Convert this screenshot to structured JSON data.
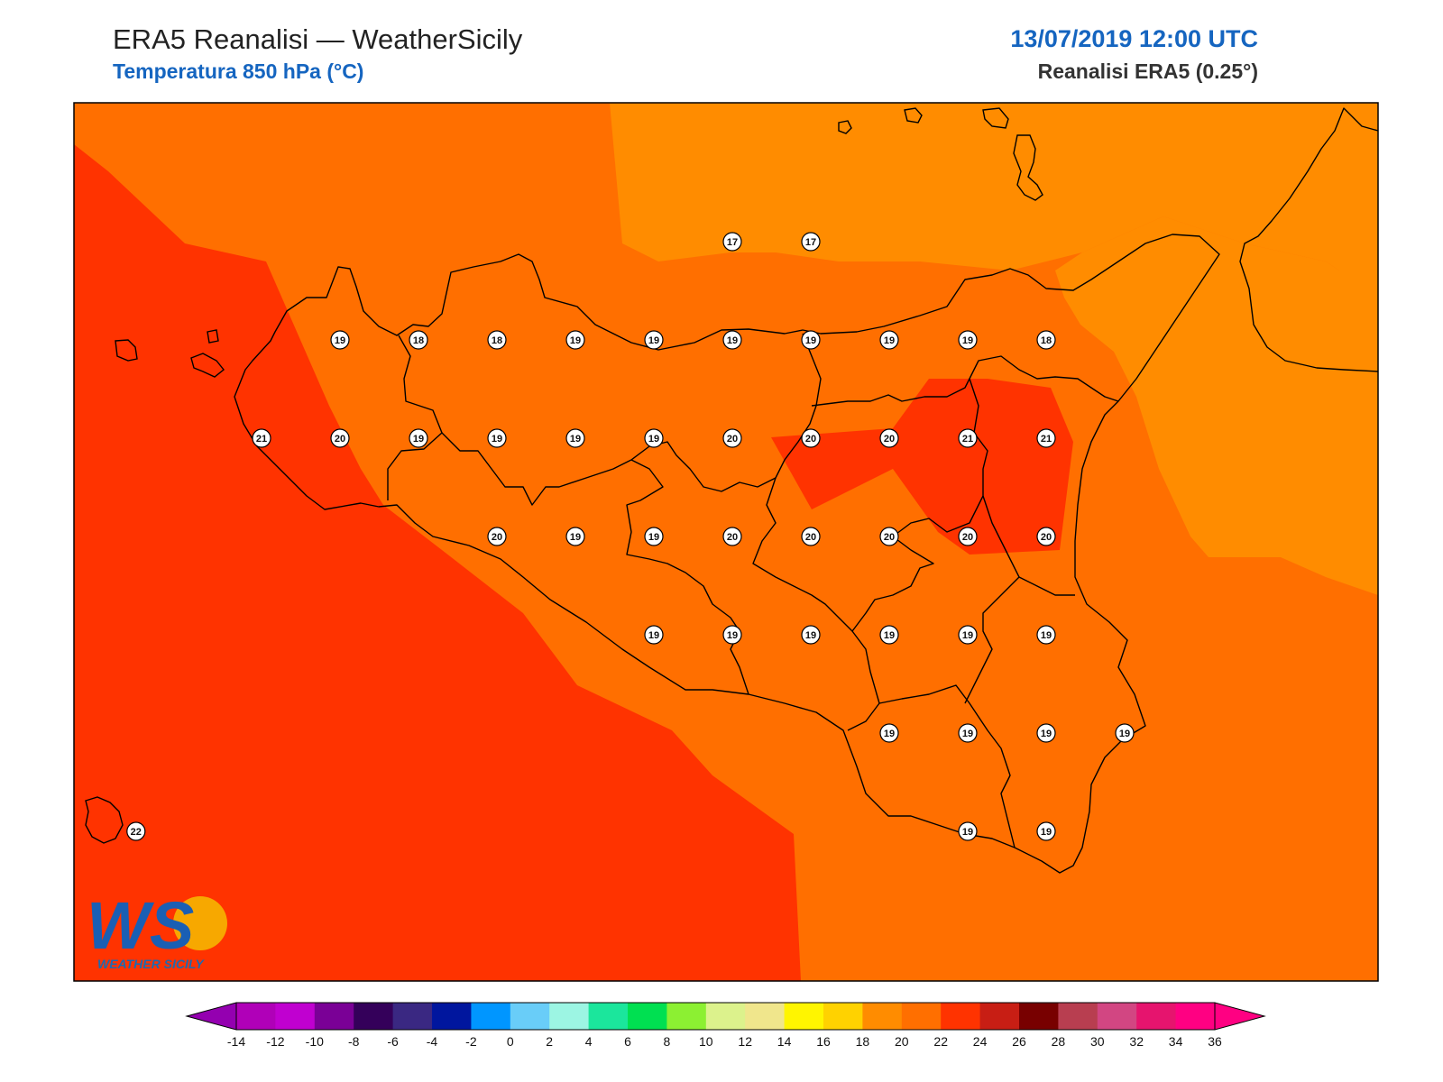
{
  "header": {
    "title": "ERA5 Reanalisi — WeatherSicily",
    "subtitle": "Temperatura 850 hPa (°C)",
    "datetime": "13/07/2019 12:00 UTC",
    "source": "Reanalisi ERA5 (0.25°)"
  },
  "logo": {
    "letters": "WS",
    "caption": "WEATHER SICILY"
  },
  "temperature_fills": {
    "t16_18": "#ff8c00",
    "t18_20": "#ff6f00",
    "t20_22": "#ff3300"
  },
  "stations": [
    {
      "lat": 38.25,
      "lon": 15.0,
      "t": "17"
    },
    {
      "lat": 38.25,
      "lon": 15.5,
      "t": "17"
    },
    {
      "lat": 38.0,
      "lon": 12.5,
      "t": "19"
    },
    {
      "lat": 38.0,
      "lon": 13.0,
      "t": "18"
    },
    {
      "lat": 38.0,
      "lon": 13.5,
      "t": "18"
    },
    {
      "lat": 38.0,
      "lon": 14.0,
      "t": "19"
    },
    {
      "lat": 38.0,
      "lon": 15.0,
      "t": "19"
    },
    {
      "lat": 38.0,
      "lon": 14.5,
      "t": "19"
    },
    {
      "lat": 38.0,
      "lon": 15.5,
      "t": "19"
    },
    {
      "lat": 38.0,
      "lon": 16.0,
      "t": "19"
    },
    {
      "lat": 38.0,
      "lon": 16.5,
      "t": "19"
    },
    {
      "lat": 38.0,
      "lon": 17.0,
      "t": "18"
    },
    {
      "lat": 37.75,
      "lon": 12.0,
      "t": "21"
    },
    {
      "lat": 37.75,
      "lon": 12.5,
      "t": "20"
    },
    {
      "lat": 37.75,
      "lon": 13.0,
      "t": "19"
    },
    {
      "lat": 37.75,
      "lon": 13.5,
      "t": "19"
    },
    {
      "lat": 37.75,
      "lon": 14.0,
      "t": "19"
    },
    {
      "lat": 37.75,
      "lon": 14.5,
      "t": "19"
    },
    {
      "lat": 37.75,
      "lon": 15.0,
      "t": "20"
    },
    {
      "lat": 37.75,
      "lon": 15.5,
      "t": "20"
    },
    {
      "lat": 37.75,
      "lon": 16.0,
      "t": "20"
    },
    {
      "lat": 37.75,
      "lon": 16.5,
      "t": "21"
    },
    {
      "lat": 37.75,
      "lon": 17.0,
      "t": "21"
    },
    {
      "lat": 37.5,
      "lon": 13.5,
      "t": "20"
    },
    {
      "lat": 37.5,
      "lon": 14.0,
      "t": "19"
    },
    {
      "lat": 37.5,
      "lon": 14.5,
      "t": "19"
    },
    {
      "lat": 37.5,
      "lon": 15.0,
      "t": "20"
    },
    {
      "lat": 37.5,
      "lon": 15.5,
      "t": "20"
    },
    {
      "lat": 37.5,
      "lon": 16.0,
      "t": "20"
    },
    {
      "lat": 37.5,
      "lon": 16.5,
      "t": "20"
    },
    {
      "lat": 37.5,
      "lon": 17.0,
      "t": "20"
    },
    {
      "lat": 37.25,
      "lon": 14.5,
      "t": "19"
    },
    {
      "lat": 37.25,
      "lon": 15.0,
      "t": "19"
    },
    {
      "lat": 37.25,
      "lon": 15.5,
      "t": "19"
    },
    {
      "lat": 37.25,
      "lon": 16.0,
      "t": "19"
    },
    {
      "lat": 37.25,
      "lon": 16.5,
      "t": "19"
    },
    {
      "lat": 37.25,
      "lon": 17.0,
      "t": "19"
    },
    {
      "lat": 37.0,
      "lon": 16.0,
      "t": "19"
    },
    {
      "lat": 37.0,
      "lon": 16.5,
      "t": "19"
    },
    {
      "lat": 37.0,
      "lon": 17.0,
      "t": "19"
    },
    {
      "lat": 37.0,
      "lon": 17.5,
      "t": "19"
    },
    {
      "lat": 36.75,
      "lon": 16.5,
      "t": "19"
    },
    {
      "lat": 36.75,
      "lon": 17.0,
      "t": "19"
    },
    {
      "lat": 36.75,
      "lon": 11.2,
      "t": "22"
    }
  ],
  "colorbar": {
    "ticks": [
      "-14",
      "-12",
      "-10",
      "-8",
      "-6",
      "-4",
      "-2",
      "0",
      "2",
      "4",
      "6",
      "8",
      "10",
      "12",
      "14",
      "16",
      "18",
      "20",
      "22",
      "24",
      "26",
      "28",
      "30",
      "32",
      "34",
      "36"
    ],
    "colors": [
      "#b000b8",
      "#c000d0",
      "#7a0096",
      "#34005a",
      "#3a2882",
      "#00169e",
      "#0096ff",
      "#69cdf8",
      "#9cf5e3",
      "#1be69c",
      "#00e051",
      "#8cf032",
      "#dcf28c",
      "#f0e68c",
      "#fff500",
      "#ffd200",
      "#ff8c00",
      "#ff6f00",
      "#ff3300",
      "#c81e14",
      "#780000",
      "#b83e50",
      "#d24682",
      "#e6146e",
      "#ff0082"
    ],
    "under_color": "#9400b0",
    "over_color": "#ff0082"
  }
}
